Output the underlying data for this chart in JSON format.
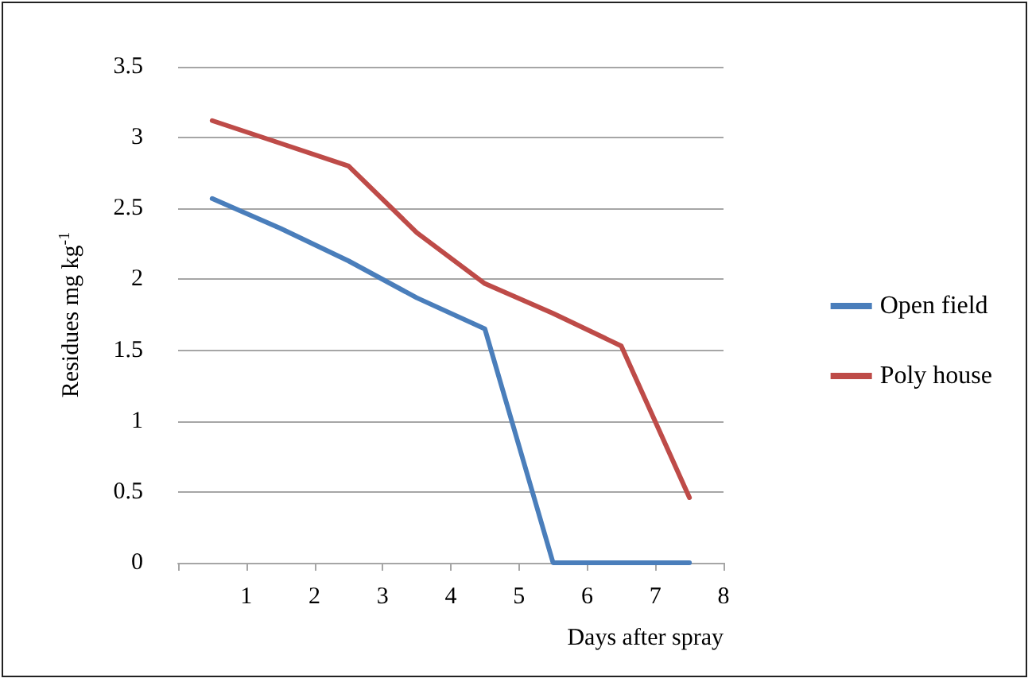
{
  "chart_data": {
    "type": "line",
    "xlabel": "Days after spray",
    "ylabel": "Residues mg kg$^{-1}$",
    "x": [
      0.5,
      1.5,
      2.5,
      3.5,
      4.5,
      5.5,
      6.5,
      7.5
    ],
    "series": [
      {
        "name": "Open field",
        "color": "#4a7ebb",
        "values": [
          2.57,
          2.36,
          2.13,
          1.87,
          1.65,
          0,
          0,
          0
        ]
      },
      {
        "name": "Poly house",
        "color": "#be4b48",
        "values": [
          3.12,
          2.96,
          2.8,
          2.33,
          1.97,
          1.76,
          1.53,
          0.46
        ]
      }
    ],
    "xlim": [
      0,
      8
    ],
    "xticks": [
      {
        "value": 0,
        "label": null
      },
      1,
      2,
      3,
      4,
      5,
      6,
      7,
      8
    ],
    "ylim": [
      0,
      3.5
    ],
    "yticks": [
      0,
      0.5,
      1,
      1.5,
      2,
      2.5,
      3,
      3.5
    ],
    "grid": "y",
    "legend": "right",
    "marker": "none",
    "line_style": "solid"
  }
}
